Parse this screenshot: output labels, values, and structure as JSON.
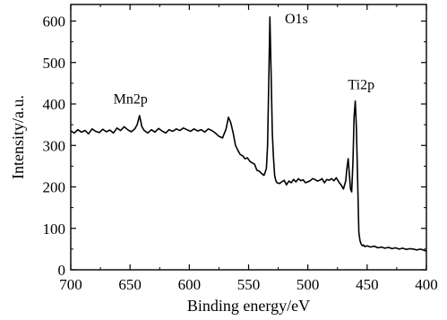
{
  "chart_data": {
    "type": "line",
    "title": "",
    "xlabel": "Binding energy/eV",
    "ylabel": "Intensity/a.u.",
    "xlim": [
      700,
      400
    ],
    "ylim": [
      0,
      640
    ],
    "x_reversed": true,
    "grid": false,
    "legend": "none",
    "xticks": [
      700,
      650,
      600,
      550,
      500,
      450,
      400
    ],
    "yticks": [
      0,
      100,
      200,
      300,
      400,
      500,
      600
    ],
    "line_color": "#000000",
    "annotations": [
      {
        "text": "Mn2p",
        "x": 642,
        "y": 375
      },
      {
        "text": "O1s",
        "x": 530,
        "y": 612
      },
      {
        "text": "Ti2p",
        "x": 458,
        "y": 405
      }
    ],
    "series": [
      {
        "x": [
          700,
          697,
          694,
          691,
          688,
          685,
          682,
          679,
          676,
          673,
          670,
          667,
          664,
          661,
          658,
          655,
          652,
          649,
          646,
          644,
          642,
          640,
          638,
          635,
          632,
          629,
          626,
          623,
          620,
          617,
          614,
          611,
          608,
          605,
          602,
          599,
          596,
          593,
          590,
          587,
          584,
          581,
          578,
          575,
          572,
          569,
          567,
          565,
          563,
          561,
          559,
          557,
          555,
          553,
          551,
          549,
          547,
          545,
          543,
          541,
          539,
          537,
          536,
          535,
          534,
          533,
          532,
          531,
          530,
          529,
          528,
          527,
          526,
          524,
          522,
          520,
          518,
          516,
          514,
          512,
          510,
          508,
          506,
          504,
          502,
          500,
          498,
          496,
          494,
          492,
          490,
          488,
          486,
          484,
          482,
          480,
          478,
          476,
          474,
          472,
          470,
          468,
          467,
          466,
          465,
          464,
          463,
          462,
          461,
          460,
          459,
          458,
          457,
          456,
          455,
          454,
          453,
          452,
          450,
          447,
          444,
          441,
          438,
          435,
          432,
          429,
          426,
          423,
          420,
          417,
          414,
          411,
          408,
          405,
          402,
          400
        ],
        "y": [
          335,
          330,
          338,
          332,
          336,
          328,
          340,
          334,
          331,
          339,
          333,
          337,
          330,
          342,
          336,
          345,
          338,
          333,
          340,
          350,
          372,
          345,
          336,
          330,
          338,
          332,
          341,
          335,
          330,
          338,
          334,
          340,
          336,
          342,
          338,
          334,
          340,
          335,
          338,
          332,
          340,
          336,
          330,
          322,
          318,
          340,
          368,
          355,
          330,
          300,
          288,
          278,
          275,
          268,
          270,
          262,
          258,
          255,
          240,
          238,
          232,
          228,
          235,
          245,
          300,
          450,
          610,
          480,
          330,
          270,
          228,
          215,
          210,
          208,
          212,
          216,
          205,
          214,
          210,
          218,
          212,
          220,
          215,
          217,
          210,
          212,
          215,
          220,
          218,
          214,
          216,
          220,
          210,
          218,
          216,
          220,
          215,
          222,
          212,
          205,
          195,
          215,
          245,
          268,
          230,
          195,
          188,
          260,
          370,
          407,
          340,
          220,
          90,
          70,
          62,
          58,
          60,
          56,
          58,
          55,
          57,
          53,
          55,
          52,
          54,
          51,
          53,
          50,
          52,
          49,
          51,
          50,
          48,
          50,
          47,
          45
        ]
      }
    ]
  }
}
